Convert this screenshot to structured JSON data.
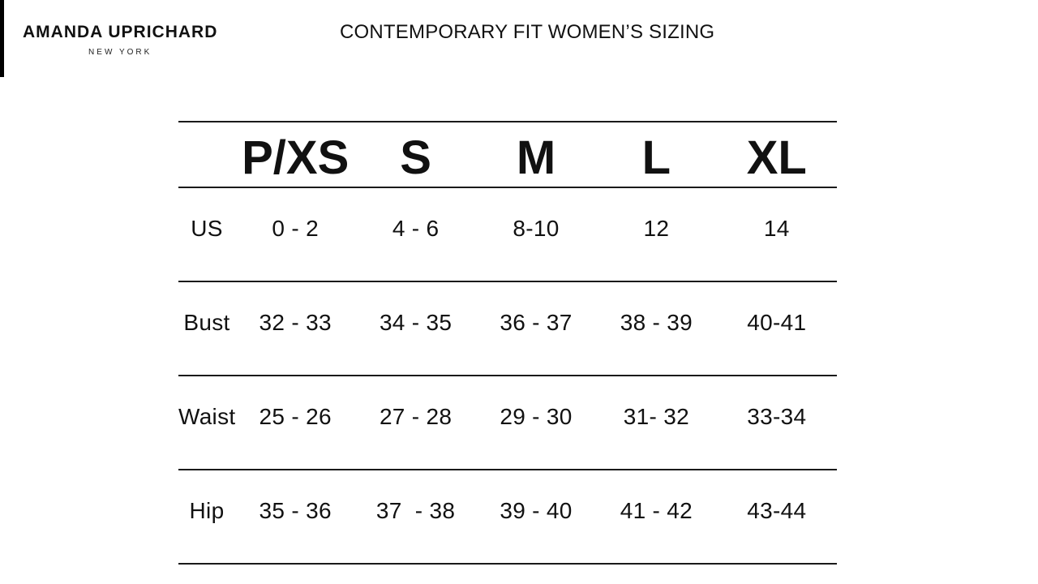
{
  "brand": {
    "name": "AMANDA UPRICHARD",
    "location": "NEW YORK"
  },
  "title": "CONTEMPORARY FIT WOMEN’S SIZING",
  "chart_data": {
    "type": "table",
    "title": "CONTEMPORARY FIT WOMEN’S SIZING",
    "columns": [
      "P/XS",
      "S",
      "M",
      "L",
      "XL"
    ],
    "rows": [
      {
        "label": "US",
        "values": [
          "0 - 2",
          "4 - 6",
          "8-10",
          "12",
          "14"
        ]
      },
      {
        "label": "Bust",
        "values": [
          "32 - 33",
          "34 - 35",
          "36 - 37",
          "38 - 39",
          "40-41"
        ]
      },
      {
        "label": "Waist",
        "values": [
          "25 - 26",
          "27 - 28",
          "29 - 30",
          "31- 32",
          "33-34"
        ]
      },
      {
        "label": "Hip",
        "values": [
          "35 - 36",
          "37  - 38",
          "39 - 40",
          "41 - 42",
          "43-44"
        ]
      }
    ]
  },
  "colors": {
    "background": "#ffffff",
    "text": "#111111",
    "rule": "#1a1a1a",
    "edge_mark": "#000000"
  }
}
